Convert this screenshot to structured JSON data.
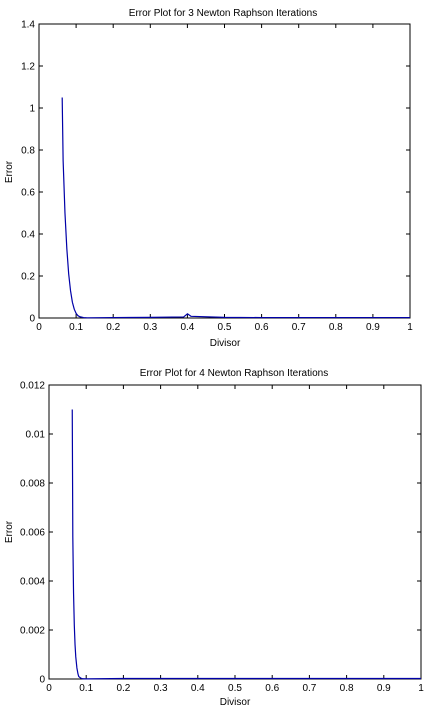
{
  "chart_data": [
    {
      "type": "line",
      "title": "Error Plot for 3 Newton Raphson Iterations",
      "xlabel": "Divisor",
      "ylabel": "Error",
      "xlim": [
        0,
        1
      ],
      "ylim": [
        0,
        1.4
      ],
      "xticks": [
        "0",
        "0.1",
        "0.2",
        "0.3",
        "0.4",
        "0.5",
        "0.6",
        "0.7",
        "0.8",
        "0.9",
        "1"
      ],
      "yticks": [
        "0",
        "0.2",
        "0.4",
        "0.6",
        "0.8",
        "1",
        "1.2",
        "1.4"
      ],
      "grid": false,
      "line_color": "#0000a8",
      "series": [
        {
          "x": [
            0.0625,
            0.065,
            0.07,
            0.075,
            0.08,
            0.085,
            0.09,
            0.095,
            0.1,
            0.105,
            0.11,
            0.12,
            0.13,
            0.2,
            0.3,
            0.39,
            0.4,
            0.41,
            0.5,
            0.6,
            0.7,
            0.8,
            0.9,
            1.0
          ],
          "y": [
            1.05,
            0.75,
            0.5,
            0.33,
            0.21,
            0.13,
            0.075,
            0.042,
            0.022,
            0.011,
            0.006,
            0.002,
            0.001,
            0.002,
            0.003,
            0.005,
            0.02,
            0.008,
            0.003,
            0.002,
            0.002,
            0.002,
            0.002,
            0.002
          ]
        }
      ]
    },
    {
      "type": "line",
      "title": "Error Plot for 4 Newton Raphson Iterations",
      "xlabel": "Divisor",
      "ylabel": "Error",
      "xlim": [
        0,
        1
      ],
      "ylim": [
        0,
        0.012
      ],
      "xticks": [
        "0",
        "0.1",
        "0.2",
        "0.3",
        "0.4",
        "0.5",
        "0.6",
        "0.7",
        "0.8",
        "0.9",
        "1"
      ],
      "yticks": [
        "0",
        "0.002",
        "0.004",
        "0.006",
        "0.008",
        "0.01",
        "0.012"
      ],
      "grid": false,
      "line_color": "#0000a8",
      "series": [
        {
          "x": [
            0.0625,
            0.064,
            0.066,
            0.068,
            0.07,
            0.072,
            0.075,
            0.078,
            0.08,
            0.085,
            0.09,
            0.1,
            0.2,
            0.3,
            0.4,
            0.5,
            0.6,
            0.7,
            0.8,
            0.9,
            1.0
          ],
          "y": [
            0.011,
            0.0058,
            0.0035,
            0.0022,
            0.0014,
            0.0009,
            0.00045,
            0.0002,
            0.0001,
            4e-05,
            1e-05,
            5e-06,
            2e-05,
            2e-05,
            2e-05,
            2e-05,
            2e-05,
            2e-05,
            2e-05,
            2e-05,
            2e-05
          ]
        }
      ]
    }
  ]
}
